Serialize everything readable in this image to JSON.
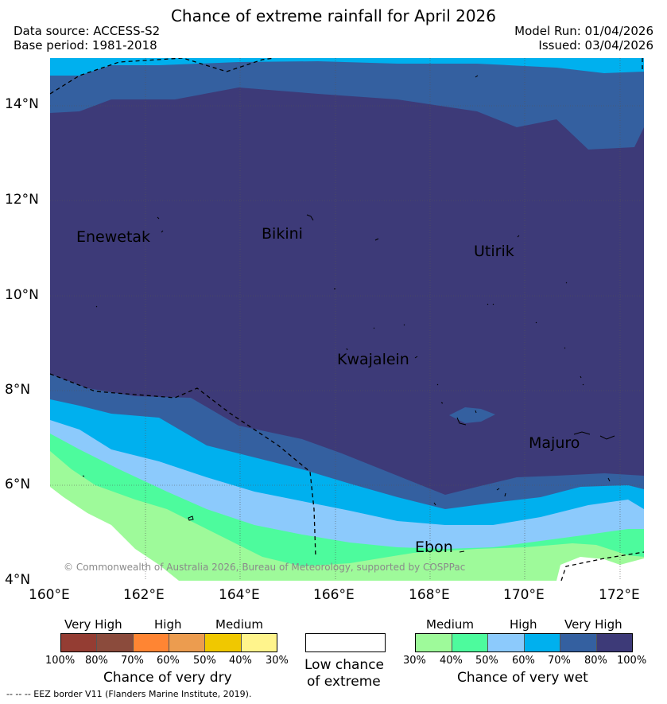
{
  "title": "Chance of extreme rainfall for April 2026",
  "header": {
    "data_source": "Data source: ACCESS-S2",
    "base_period": "Base period: 1981-2018",
    "model_run": "Model Run: 01/04/2026",
    "issued": "Issued: 03/04/2026"
  },
  "axes": {
    "lat_labels": [
      "14°N",
      "12°N",
      "10°N",
      "8°N",
      "6°N",
      "4°N"
    ],
    "lon_labels": [
      "160°E",
      "162°E",
      "164°E",
      "166°E",
      "168°E",
      "170°E",
      "172°E"
    ]
  },
  "places": {
    "enewetak": "Enewetak",
    "bikini": "Bikini",
    "utirik": "Utirik",
    "kwajalein": "Kwajalein",
    "majuro": "Majuro",
    "ebon": "Ebon"
  },
  "copyright": "© Commonwealth of Australia 2026, Bureau of Meteorology, supported by COSPPac",
  "legend": {
    "dry": {
      "levels": [
        "Very High",
        "High",
        "Medium"
      ],
      "ticks": [
        "100%",
        "80%",
        "70%",
        "60%",
        "50%",
        "40%",
        "30%"
      ],
      "colors": [
        "#943d33",
        "#8b4b3c",
        "#ff8533",
        "#ec9c4f",
        "#f0c800",
        "#fff48c"
      ],
      "title": "Chance of very dry"
    },
    "low": {
      "line1": "Low chance",
      "line2": "of extreme"
    },
    "wet": {
      "levels": [
        "Medium",
        "High",
        "Very High"
      ],
      "ticks": [
        "30%",
        "40%",
        "50%",
        "60%",
        "70%",
        "80%",
        "100%"
      ],
      "colors": [
        "#9efa9a",
        "#4dfb9d",
        "#8ccafc",
        "#00b0ee",
        "#3460a0",
        "#3d3a78"
      ],
      "title": "Chance of very wet"
    }
  },
  "footer": "--  --  -- EEZ border V11 (Flanders Marine Institute, 2019)."
}
